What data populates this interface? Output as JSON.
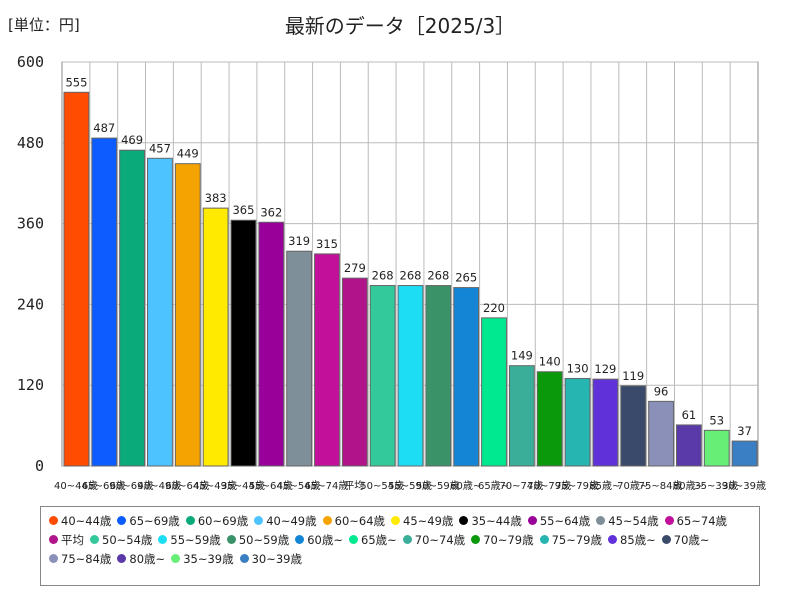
{
  "unit_label": "[単位：円]",
  "chart_data": {
    "type": "bar",
    "title": "最新のデータ［2025/3］",
    "xlabel": "",
    "ylabel": "",
    "ylim": [
      0,
      600
    ],
    "yticks": [
      0,
      120,
      240,
      360,
      480,
      600
    ],
    "grid": true,
    "legend_position": "bottom",
    "categories": [
      "40~44歳",
      "65~69歳",
      "60~69歳",
      "40~49歳",
      "60~64歳",
      "45~49歳",
      "35~44歳",
      "55~64歳",
      "45~54歳",
      "65~74歳",
      "平均",
      "50~54歳",
      "55~59歳",
      "50~59歳",
      "60歳~",
      "65歳~",
      "70~74歳",
      "70~79歳",
      "75~79歳",
      "85歳~",
      "70歳~",
      "75~84歳",
      "80歳~",
      "35~39歳",
      "30~39歳"
    ],
    "tick_labels": [
      "40~44歳",
      "65~69歳",
      "60~69歳",
      "40~49歳",
      "60~64歳",
      "45~49歳",
      "35~44歳",
      "55~64歳",
      "45~54歳",
      "65~74歳",
      "平均",
      "50~54歳",
      "55~59歳",
      "50~59歳",
      "60歳~",
      "65歳~",
      "70~74歳",
      "70~79歳",
      "75~79歳",
      "85歳~",
      "70歳~",
      "75~84歳",
      "80歳~",
      "35~39歳",
      "30~39歳"
    ],
    "values": [
      555,
      487,
      469,
      457,
      449,
      383,
      365,
      362,
      319,
      315,
      279,
      268,
      268,
      268,
      265,
      220,
      149,
      140,
      130,
      129,
      119,
      96,
      61,
      53,
      37
    ],
    "colors": [
      "#ff4c00",
      "#0d5cff",
      "#0aaa7a",
      "#4dc3ff",
      "#f5a300",
      "#ffea00",
      "#000000",
      "#99009a",
      "#7f8f99",
      "#c2109a",
      "#b0138a",
      "#33c99b",
      "#1cddf4",
      "#3a9368",
      "#1485d4",
      "#00e890",
      "#3aae98",
      "#0a990a",
      "#26b5b0",
      "#6030d8",
      "#3a4a6a",
      "#8a90b8",
      "#5a3aa8",
      "#66ee77",
      "#3a7fc4"
    ]
  }
}
